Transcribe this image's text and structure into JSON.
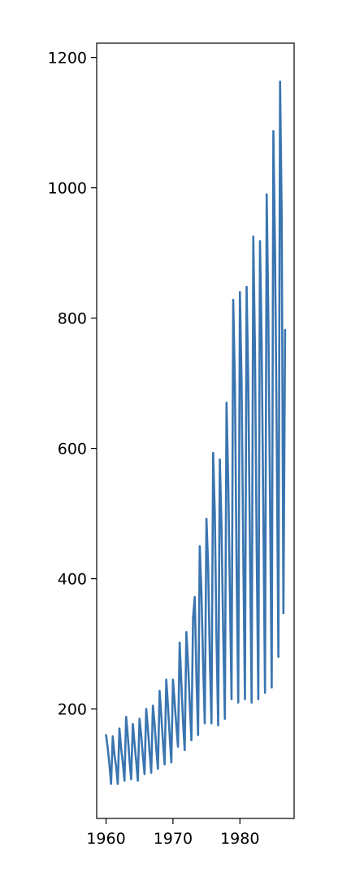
{
  "chart_data": {
    "type": "line",
    "title": "",
    "xlabel": "",
    "ylabel": "",
    "xlim": [
      1958.6,
      1988.1
    ],
    "ylim": [
      32,
      1222
    ],
    "xticks": [
      1960,
      1970,
      1980
    ],
    "xtick_labels": [
      "1960",
      "1970",
      "1980"
    ],
    "yticks": [
      200,
      400,
      600,
      800,
      1000,
      1200
    ],
    "ytick_labels": [
      "200",
      "400",
      "600",
      "800",
      "1000",
      "1200"
    ],
    "grid": false,
    "legend": "none",
    "series": [
      {
        "color": "#3a75b0",
        "x": [
          1960.0,
          1960.25,
          1960.5,
          1960.75,
          1961.0,
          1961.25,
          1961.5,
          1961.75,
          1962.0,
          1962.25,
          1962.5,
          1962.75,
          1963.0,
          1963.25,
          1963.5,
          1963.75,
          1964.0,
          1964.25,
          1964.5,
          1964.75,
          1965.0,
          1965.25,
          1965.5,
          1965.75,
          1966.0,
          1966.25,
          1966.5,
          1966.75,
          1967.0,
          1967.25,
          1967.5,
          1967.75,
          1968.0,
          1968.25,
          1968.5,
          1968.75,
          1969.0,
          1969.25,
          1969.5,
          1969.75,
          1970.0,
          1970.25,
          1970.5,
          1970.75,
          1971.0,
          1971.25,
          1971.5,
          1971.75,
          1972.0,
          1972.25,
          1972.5,
          1972.75,
          1973.0,
          1973.25,
          1973.5,
          1973.75,
          1974.0,
          1974.25,
          1974.5,
          1974.75,
          1975.0,
          1975.25,
          1975.5,
          1975.75,
          1976.0,
          1976.25,
          1976.5,
          1976.75,
          1977.0,
          1977.25,
          1977.5,
          1977.75,
          1978.0,
          1978.25,
          1978.5,
          1978.75,
          1979.0,
          1979.25,
          1979.5,
          1979.75,
          1980.0,
          1980.25,
          1980.5,
          1980.75,
          1981.0,
          1981.25,
          1981.5,
          1981.75,
          1982.0,
          1982.25,
          1982.5,
          1982.75,
          1983.0,
          1983.25,
          1983.5,
          1983.75,
          1984.0,
          1984.25,
          1984.5,
          1984.75,
          1985.0,
          1985.25,
          1985.5,
          1985.75,
          1986.0,
          1986.25,
          1986.5,
          1986.75
        ],
        "y": [
          160,
          140,
          115,
          85,
          158,
          130,
          112,
          85,
          170,
          140,
          118,
          90,
          188,
          158,
          122,
          92,
          177,
          148,
          120,
          90,
          185,
          160,
          128,
          100,
          200,
          170,
          135,
          102,
          205,
          178,
          140,
          108,
          228,
          190,
          150,
          115,
          245,
          205,
          160,
          118,
          245,
          210,
          175,
          142,
          302,
          240,
          180,
          137,
          318,
          270,
          210,
          152,
          340,
          372,
          250,
          160,
          450,
          380,
          270,
          178,
          492,
          420,
          280,
          178,
          593,
          500,
          310,
          175,
          583,
          480,
          320,
          185,
          670,
          550,
          380,
          215,
          828,
          700,
          420,
          210,
          840,
          700,
          440,
          215,
          848,
          700,
          450,
          210,
          925,
          750,
          450,
          215,
          918,
          760,
          500,
          225,
          990,
          800,
          520,
          233,
          1087,
          900,
          620,
          280,
          1163,
          950,
          347,
          782
        ]
      }
    ]
  }
}
